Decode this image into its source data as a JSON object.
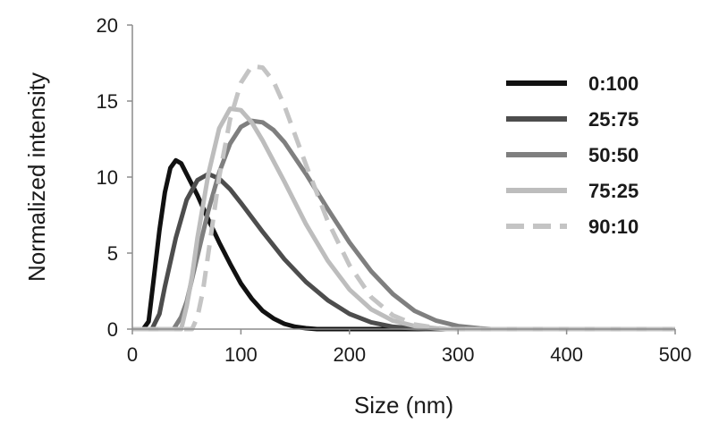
{
  "chart_data": {
    "type": "line",
    "title": "",
    "xlabel": "Size (nm)",
    "ylabel": "Normalized intensity",
    "xlim": [
      0,
      500
    ],
    "ylim": [
      0,
      20
    ],
    "x_ticks": [
      "0",
      "100",
      "200",
      "300",
      "400",
      "500"
    ],
    "y_ticks": [
      "0",
      "5",
      "10",
      "15",
      "20"
    ],
    "grid": false,
    "legend_position": "top-right",
    "series": [
      {
        "name": "0:100",
        "color": "#111111",
        "dash": "solid",
        "points": [
          [
            0,
            0
          ],
          [
            10,
            0
          ],
          [
            15,
            0.5
          ],
          [
            20,
            3.5
          ],
          [
            25,
            6.5
          ],
          [
            30,
            9.0
          ],
          [
            35,
            10.6
          ],
          [
            40,
            11.1
          ],
          [
            45,
            10.9
          ],
          [
            50,
            10.2
          ],
          [
            60,
            8.8
          ],
          [
            70,
            7.2
          ],
          [
            80,
            5.7
          ],
          [
            90,
            4.3
          ],
          [
            100,
            3.0
          ],
          [
            110,
            2.0
          ],
          [
            120,
            1.2
          ],
          [
            130,
            0.7
          ],
          [
            140,
            0.35
          ],
          [
            150,
            0.15
          ],
          [
            160,
            0.06
          ],
          [
            170,
            0
          ],
          [
            500,
            0
          ]
        ]
      },
      {
        "name": "25:75",
        "color": "#4d4d4d",
        "dash": "solid",
        "points": [
          [
            0,
            0
          ],
          [
            18,
            0
          ],
          [
            25,
            1.0
          ],
          [
            30,
            2.8
          ],
          [
            40,
            6.0
          ],
          [
            50,
            8.5
          ],
          [
            60,
            9.8
          ],
          [
            70,
            10.2
          ],
          [
            80,
            9.9
          ],
          [
            90,
            9.2
          ],
          [
            100,
            8.3
          ],
          [
            120,
            6.4
          ],
          [
            140,
            4.6
          ],
          [
            160,
            3.1
          ],
          [
            180,
            1.9
          ],
          [
            200,
            1.0
          ],
          [
            220,
            0.45
          ],
          [
            240,
            0.15
          ],
          [
            260,
            0.04
          ],
          [
            270,
            0
          ],
          [
            500,
            0
          ]
        ]
      },
      {
        "name": "50:50",
        "color": "#7f7f7f",
        "dash": "solid",
        "points": [
          [
            0,
            0
          ],
          [
            38,
            0
          ],
          [
            45,
            0.8
          ],
          [
            50,
            1.8
          ],
          [
            60,
            4.8
          ],
          [
            70,
            7.8
          ],
          [
            80,
            10.3
          ],
          [
            90,
            12.2
          ],
          [
            100,
            13.3
          ],
          [
            110,
            13.7
          ],
          [
            120,
            13.6
          ],
          [
            130,
            13.1
          ],
          [
            140,
            12.3
          ],
          [
            160,
            10.2
          ],
          [
            180,
            7.9
          ],
          [
            200,
            5.7
          ],
          [
            220,
            3.8
          ],
          [
            240,
            2.3
          ],
          [
            260,
            1.2
          ],
          [
            280,
            0.55
          ],
          [
            300,
            0.2
          ],
          [
            320,
            0.05
          ],
          [
            330,
            0
          ],
          [
            500,
            0
          ]
        ]
      },
      {
        "name": "75:25",
        "color": "#bdbdbd",
        "dash": "solid",
        "points": [
          [
            0,
            0
          ],
          [
            45,
            0
          ],
          [
            50,
            1.5
          ],
          [
            55,
            3.5
          ],
          [
            60,
            6.0
          ],
          [
            70,
            10.2
          ],
          [
            80,
            13.2
          ],
          [
            90,
            14.5
          ],
          [
            100,
            14.4
          ],
          [
            110,
            13.6
          ],
          [
            120,
            12.4
          ],
          [
            140,
            9.7
          ],
          [
            160,
            6.9
          ],
          [
            180,
            4.5
          ],
          [
            200,
            2.6
          ],
          [
            220,
            1.3
          ],
          [
            240,
            0.55
          ],
          [
            260,
            0.2
          ],
          [
            280,
            0.05
          ],
          [
            290,
            0
          ],
          [
            500,
            0
          ]
        ]
      },
      {
        "name": "90:10",
        "color": "#c4c4c4",
        "dash": "dashed",
        "points": [
          [
            0,
            0
          ],
          [
            55,
            0
          ],
          [
            60,
            0.8
          ],
          [
            65,
            2.5
          ],
          [
            70,
            5.0
          ],
          [
            80,
            10.0
          ],
          [
            90,
            13.8
          ],
          [
            100,
            16.2
          ],
          [
            110,
            17.3
          ],
          [
            120,
            17.2
          ],
          [
            130,
            16.3
          ],
          [
            140,
            14.7
          ],
          [
            160,
            10.8
          ],
          [
            180,
            7.1
          ],
          [
            200,
            4.2
          ],
          [
            220,
            2.1
          ],
          [
            240,
            0.9
          ],
          [
            260,
            0.3
          ],
          [
            280,
            0.08
          ],
          [
            290,
            0
          ],
          [
            500,
            0
          ]
        ]
      }
    ]
  }
}
